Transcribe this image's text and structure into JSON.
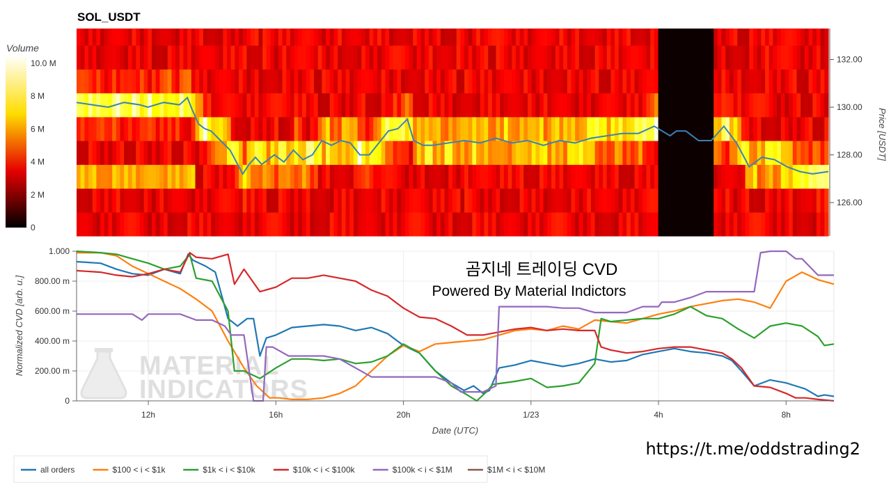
{
  "heatmap_panel": {
    "title": "SOL_USDT",
    "price_axis_label": "Price [USDT]",
    "colorbar_label": "Volume",
    "colorbar_ticks": [
      "0",
      "2 M",
      "4 M",
      "6 M",
      "8 M",
      "10.0 M"
    ]
  },
  "cvd_panel": {
    "ylabel": "Normalized CVD [arb. u.]",
    "xlabel": "Date (UTC)",
    "annotation_line1": "곰지네 트레이딩 CVD",
    "annotation_line2": "Powered By Material Indictors",
    "watermark_line1": "MATERIAL",
    "watermark_line2": "INDICATORS"
  },
  "footer_url": "https://t.me/oddstrading2",
  "colors": {
    "all_orders": "#1f77b4",
    "b100_1k": "#ff7f0e",
    "b1k_10k": "#2ca02c",
    "b10k_100k": "#d62728",
    "b100k_1m": "#9467bd",
    "b1m_10m": "#8c564b"
  },
  "chart_data": [
    {
      "type": "heatmap",
      "title": "SOL_USDT",
      "ylabel": "Price [USDT]",
      "y_ticks": [
        "126.00",
        "128.00",
        "130.00",
        "132.00"
      ],
      "ylim": [
        124.6,
        133.3
      ],
      "colorbar_label": "Volume",
      "colorbar_range": [
        0,
        10.5
      ],
      "colorbar_unit": "M",
      "x_ticks": [
        "12h",
        "16h",
        "20h",
        "1/23",
        "4h",
        "8h"
      ],
      "xlim": [
        9.75,
        33.5
      ],
      "price_line": {
        "x": [
          9.75,
          10.25,
          10.75,
          11.25,
          11.75,
          12.0,
          12.5,
          13.0,
          13.25,
          13.4,
          13.6,
          13.8,
          14.0,
          14.3,
          14.6,
          14.8,
          15.0,
          15.2,
          15.4,
          15.6,
          15.8,
          16.0,
          16.3,
          16.6,
          16.9,
          17.2,
          17.5,
          17.8,
          18.1,
          18.4,
          18.7,
          19.0,
          19.3,
          19.6,
          19.9,
          20.2,
          20.4,
          20.7,
          21.0,
          21.5,
          22.0,
          22.5,
          23.0,
          23.5,
          24.0,
          24.5,
          25.0,
          25.5,
          26.0,
          26.5,
          27.0,
          27.5,
          28.0,
          28.5,
          28.7,
          29.0,
          29.4,
          29.8,
          30.2,
          30.6,
          31.0,
          31.4,
          31.8,
          32.2,
          32.6,
          33.0,
          33.5
        ],
        "y": [
          130.2,
          130.1,
          130.0,
          130.2,
          130.1,
          130.0,
          130.2,
          130.1,
          130.4,
          129.9,
          129.3,
          129.1,
          129.0,
          128.6,
          128.2,
          127.7,
          127.2,
          127.6,
          127.9,
          127.6,
          127.8,
          128.0,
          127.7,
          128.2,
          127.8,
          128.0,
          128.6,
          128.4,
          128.6,
          128.5,
          128.0,
          128.0,
          128.5,
          129.0,
          129.1,
          129.5,
          128.6,
          128.4,
          128.4,
          128.5,
          128.6,
          128.5,
          128.7,
          128.5,
          128.6,
          128.4,
          128.6,
          128.5,
          128.7,
          128.8,
          128.9,
          128.9,
          129.2,
          128.8,
          129.0,
          129.0,
          128.6,
          128.6,
          129.2,
          128.5,
          127.5,
          127.9,
          127.8,
          127.5,
          127.3,
          127.2,
          127.3
        ]
      },
      "price_line_color": "#3a82b7"
    },
    {
      "type": "line",
      "xlabel": "Date (UTC)",
      "ylabel": "Normalized CVD [arb. u.]",
      "x_ticks": [
        "12h",
        "16h",
        "20h",
        "1/23",
        "4h",
        "8h"
      ],
      "x_tick_positions_hours": [
        12,
        16,
        20,
        24,
        28,
        32
      ],
      "xlim": [
        9.75,
        33.5
      ],
      "y_ticks": [
        "0",
        "200.00 m",
        "400.00 m",
        "600.00 m",
        "800.00 m",
        "1.000"
      ],
      "ylim": [
        0,
        1.0
      ],
      "legend_position": "bottom",
      "series": [
        {
          "name": "all orders",
          "color": "#1f77b4",
          "x": [
            9.75,
            10.5,
            11.0,
            11.5,
            12.0,
            12.5,
            13.0,
            13.25,
            13.4,
            13.8,
            14.1,
            14.5,
            14.8,
            15.1,
            15.3,
            15.5,
            15.7,
            16.0,
            16.5,
            17.0,
            17.5,
            18.0,
            18.5,
            19.0,
            19.5,
            20.0,
            20.5,
            21.0,
            21.5,
            21.9,
            22.2,
            22.5,
            22.7,
            23.0,
            23.5,
            24.0,
            24.5,
            25.0,
            25.5,
            26.0,
            26.5,
            27.0,
            27.5,
            28.0,
            28.5,
            29.0,
            29.5,
            30.0,
            30.3,
            30.6,
            31.0,
            31.5,
            32.0,
            32.3,
            32.6,
            33.0,
            33.2,
            33.5
          ],
          "y": [
            0.93,
            0.92,
            0.88,
            0.85,
            0.84,
            0.88,
            0.85,
            0.98,
            0.94,
            0.9,
            0.86,
            0.55,
            0.5,
            0.55,
            0.55,
            0.3,
            0.42,
            0.44,
            0.49,
            0.5,
            0.51,
            0.5,
            0.47,
            0.49,
            0.45,
            0.37,
            0.32,
            0.2,
            0.12,
            0.07,
            0.1,
            0.05,
            0.07,
            0.22,
            0.24,
            0.27,
            0.25,
            0.23,
            0.25,
            0.28,
            0.26,
            0.27,
            0.31,
            0.33,
            0.35,
            0.33,
            0.32,
            0.3,
            0.27,
            0.2,
            0.1,
            0.14,
            0.12,
            0.1,
            0.08,
            0.03,
            0.04,
            0.03
          ]
        },
        {
          "name": "$100 < i < $1k",
          "color": "#ff7f0e",
          "x": [
            9.75,
            10.5,
            11.0,
            11.5,
            12.0,
            12.5,
            13.0,
            13.5,
            14.0,
            14.5,
            15.0,
            15.4,
            15.8,
            16.1,
            16.5,
            17.0,
            17.5,
            18.0,
            18.5,
            19.0,
            19.5,
            20.0,
            20.5,
            21.0,
            21.5,
            22.0,
            22.5,
            23.0,
            23.5,
            24.0,
            24.5,
            25.0,
            25.5,
            26.0,
            26.5,
            27.0,
            27.5,
            28.0,
            28.5,
            29.0,
            29.5,
            30.0,
            30.5,
            31.0,
            31.5,
            32.0,
            32.5,
            33.0,
            33.5
          ],
          "y": [
            0.99,
            0.99,
            0.97,
            0.9,
            0.85,
            0.8,
            0.75,
            0.68,
            0.6,
            0.4,
            0.22,
            0.1,
            0.02,
            0.02,
            0.01,
            0.01,
            0.02,
            0.05,
            0.1,
            0.2,
            0.3,
            0.37,
            0.33,
            0.38,
            0.39,
            0.4,
            0.41,
            0.44,
            0.47,
            0.48,
            0.47,
            0.5,
            0.48,
            0.54,
            0.53,
            0.52,
            0.55,
            0.58,
            0.6,
            0.63,
            0.65,
            0.67,
            0.68,
            0.66,
            0.62,
            0.8,
            0.86,
            0.81,
            0.78
          ]
        },
        {
          "name": "$1k < i < $10k",
          "color": "#2ca02c",
          "x": [
            9.75,
            10.5,
            11.0,
            11.5,
            12.0,
            12.5,
            13.0,
            13.3,
            13.5,
            14.0,
            14.5,
            14.7,
            15.0,
            15.5,
            16.0,
            16.5,
            17.0,
            17.5,
            18.0,
            18.5,
            19.0,
            19.5,
            20.0,
            20.5,
            21.0,
            21.5,
            22.0,
            22.3,
            22.6,
            22.8,
            23.5,
            24.0,
            24.5,
            25.0,
            25.5,
            26.0,
            26.2,
            26.5,
            27.0,
            27.5,
            28.0,
            28.5,
            29.0,
            29.5,
            30.0,
            30.5,
            31.0,
            31.5,
            32.0,
            32.5,
            33.0,
            33.2,
            33.5
          ],
          "y": [
            1.0,
            0.99,
            0.98,
            0.95,
            0.92,
            0.88,
            0.9,
            0.98,
            0.82,
            0.8,
            0.6,
            0.2,
            0.2,
            0.15,
            0.22,
            0.28,
            0.28,
            0.27,
            0.28,
            0.25,
            0.26,
            0.3,
            0.38,
            0.32,
            0.2,
            0.1,
            0.04,
            0.0,
            0.06,
            0.11,
            0.13,
            0.15,
            0.09,
            0.1,
            0.12,
            0.25,
            0.55,
            0.53,
            0.54,
            0.55,
            0.55,
            0.58,
            0.63,
            0.57,
            0.55,
            0.48,
            0.42,
            0.5,
            0.52,
            0.5,
            0.43,
            0.37,
            0.38
          ]
        },
        {
          "name": "$10k < i < $100k",
          "color": "#d62728",
          "x": [
            9.75,
            10.5,
            11.0,
            11.5,
            12.0,
            12.5,
            13.0,
            13.3,
            13.5,
            14.0,
            14.5,
            14.7,
            15.0,
            15.5,
            16.0,
            16.5,
            17.0,
            17.5,
            18.0,
            18.5,
            19.0,
            19.5,
            20.0,
            20.5,
            21.0,
            21.5,
            22.0,
            22.5,
            23.0,
            23.5,
            24.0,
            24.5,
            25.0,
            25.5,
            26.0,
            26.2,
            26.5,
            27.0,
            27.5,
            28.0,
            28.5,
            29.0,
            29.5,
            30.0,
            30.3,
            30.6,
            31.0,
            31.5,
            32.0,
            32.3,
            32.6,
            33.0,
            33.5
          ],
          "y": [
            0.87,
            0.86,
            0.84,
            0.83,
            0.85,
            0.88,
            0.86,
            0.99,
            0.96,
            0.95,
            0.98,
            0.78,
            0.88,
            0.73,
            0.76,
            0.82,
            0.82,
            0.84,
            0.82,
            0.8,
            0.74,
            0.7,
            0.62,
            0.56,
            0.55,
            0.5,
            0.44,
            0.44,
            0.46,
            0.48,
            0.49,
            0.47,
            0.48,
            0.47,
            0.47,
            0.36,
            0.34,
            0.32,
            0.33,
            0.35,
            0.36,
            0.36,
            0.34,
            0.32,
            0.28,
            0.22,
            0.1,
            0.09,
            0.05,
            0.02,
            0.02,
            0.01,
            0.0
          ]
        },
        {
          "name": "$100k < i < $1M",
          "color": "#9467bd",
          "x": [
            9.75,
            10.5,
            11.0,
            11.5,
            11.8,
            12.0,
            12.5,
            13.0,
            13.5,
            13.6,
            14.0,
            14.4,
            14.6,
            15.0,
            15.3,
            15.6,
            15.7,
            15.9,
            16.4,
            17.0,
            17.5,
            18.0,
            18.5,
            19.0,
            19.5,
            20.0,
            20.5,
            21.0,
            21.5,
            21.8,
            22.0,
            22.5,
            22.9,
            23.0,
            23.5,
            24.0,
            24.5,
            25.0,
            25.5,
            26.0,
            26.5,
            27.0,
            27.5,
            28.0,
            28.1,
            28.5,
            29.0,
            29.5,
            30.0,
            30.5,
            31.0,
            31.2,
            31.5,
            32.0,
            32.3,
            32.5,
            33.0,
            33.5
          ],
          "y": [
            0.58,
            0.58,
            0.58,
            0.58,
            0.54,
            0.58,
            0.58,
            0.58,
            0.54,
            0.54,
            0.54,
            0.5,
            0.44,
            0.44,
            0.0,
            0.0,
            0.36,
            0.36,
            0.3,
            0.3,
            0.3,
            0.28,
            0.22,
            0.16,
            0.16,
            0.16,
            0.16,
            0.16,
            0.12,
            0.06,
            0.06,
            0.06,
            0.1,
            0.63,
            0.63,
            0.63,
            0.63,
            0.62,
            0.62,
            0.59,
            0.59,
            0.59,
            0.63,
            0.63,
            0.66,
            0.66,
            0.69,
            0.73,
            0.73,
            0.73,
            0.73,
            0.99,
            1.0,
            1.0,
            0.95,
            0.95,
            0.84,
            0.84
          ]
        },
        {
          "name": "$1M < i < $10M",
          "color": "#8c564b",
          "x": [
            9.75,
            33.5
          ],
          "y": [
            null,
            null
          ]
        }
      ]
    }
  ]
}
